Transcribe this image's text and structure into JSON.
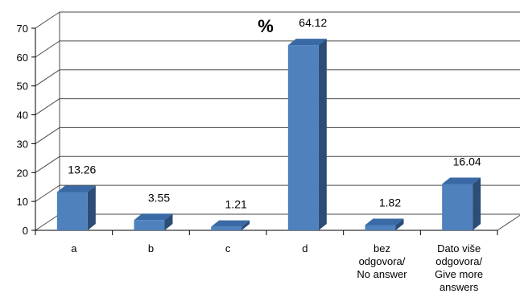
{
  "chart_data": {
    "type": "bar",
    "title": "%",
    "categories": [
      [
        "a"
      ],
      [
        "b"
      ],
      [
        "c"
      ],
      [
        "d"
      ],
      [
        "bez",
        "odgovora/",
        "No answer"
      ],
      [
        "Dato više",
        "odgovora/",
        "Give more",
        "answers"
      ]
    ],
    "values": [
      13.26,
      3.55,
      1.21,
      64.12,
      1.82,
      16.04
    ],
    "value_labels": [
      "13.26",
      "3.55",
      "1.21",
      "64.12",
      "1.82",
      "16.04"
    ],
    "yticks": [
      "0",
      "10",
      "20",
      "30",
      "40",
      "50",
      "60",
      "70"
    ],
    "ylim": [
      0,
      70
    ],
    "grid": true,
    "style": "3d-column",
    "colors": {
      "bar_front": "#4f81bd",
      "bar_side": "#2c4d75",
      "bar_top": "#3a6aa5",
      "grid": "#4a4a4a"
    }
  }
}
